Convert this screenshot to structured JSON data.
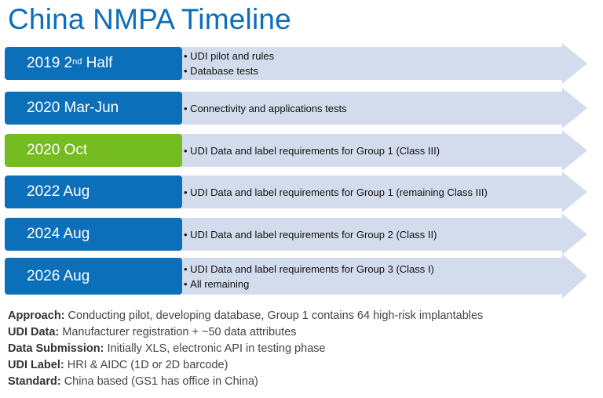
{
  "title": "China NMPA Timeline",
  "colors": {
    "title": "#0a6ebd",
    "date_box": "#0b6fba",
    "date_box_highlight": "#74bc1f",
    "arrow": "#d3dcec"
  },
  "timeline": [
    {
      "date_main": "2019 2",
      "date_sup": "nd",
      "date_rest": " Half",
      "bullets": [
        "UDI pilot and rules",
        "Database tests"
      ]
    },
    {
      "date": "2020 Mar-Jun",
      "bullets": [
        "Connectivity and applications tests"
      ]
    },
    {
      "date": "2020 Oct",
      "bullets": [
        "UDI Data and label requirements for Group 1 (Class III)"
      ]
    },
    {
      "date": "2022 Aug",
      "bullets": [
        "UDI Data and label requirements for Group 1 (remaining Class III)"
      ]
    },
    {
      "date": "2024 Aug",
      "bullets": [
        "UDI Data and label requirements for Group 2 (Class II)"
      ]
    },
    {
      "date": "2026 Aug",
      "bullets": [
        "UDI Data and label requirements for Group 3 (Class I)",
        "All remaining"
      ]
    }
  ],
  "notes": [
    {
      "label": "Approach:",
      "text": " Conducting pilot, developing database, Group 1 contains 64 high-risk implantables"
    },
    {
      "label": "UDI Data:",
      "text": " Manufacturer registration + ~50 data attributes"
    },
    {
      "label": "Data Submission:",
      "text": " Initially XLS, electronic API in testing phase"
    },
    {
      "label": "UDI Label:",
      "text": " HRI & AIDC (1D or 2D barcode)"
    },
    {
      "label": "Standard:",
      "text": " China based (GS1 has office in China)"
    }
  ]
}
